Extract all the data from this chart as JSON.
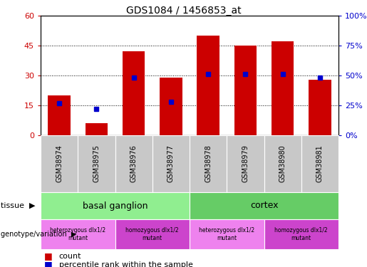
{
  "title": "GDS1084 / 1456853_at",
  "samples": [
    "GSM38974",
    "GSM38975",
    "GSM38976",
    "GSM38977",
    "GSM38978",
    "GSM38979",
    "GSM38980",
    "GSM38981"
  ],
  "counts": [
    20,
    6,
    42,
    29,
    50,
    45,
    47,
    28
  ],
  "percentiles": [
    27,
    22,
    48,
    28,
    51,
    51,
    51,
    48
  ],
  "ylim_left": [
    0,
    60
  ],
  "ylim_right": [
    0,
    100
  ],
  "yticks_left": [
    0,
    15,
    30,
    45,
    60
  ],
  "yticks_right": [
    0,
    25,
    50,
    75,
    100
  ],
  "ytick_labels_left": [
    "0",
    "15",
    "30",
    "45",
    "60"
  ],
  "ytick_labels_right": [
    "0%",
    "25%",
    "50%",
    "75%",
    "100%"
  ],
  "tissue_groups": [
    {
      "label": "basal ganglion",
      "start": 0,
      "end": 4,
      "color": "#90EE90"
    },
    {
      "label": "cortex",
      "start": 4,
      "end": 8,
      "color": "#66CC66"
    }
  ],
  "genotype_groups": [
    {
      "label": "heterozygous dlx1/2\nmutant",
      "start": 0,
      "end": 2,
      "color": "#EE82EE"
    },
    {
      "label": "homozygous dlx1/2\nmutant",
      "start": 2,
      "end": 4,
      "color": "#CC44CC"
    },
    {
      "label": "heterozygous dlx1/2\nmutant",
      "start": 4,
      "end": 6,
      "color": "#EE82EE"
    },
    {
      "label": "homozygous dlx1/2\nmutant",
      "start": 6,
      "end": 8,
      "color": "#CC44CC"
    }
  ],
  "bar_color": "#CC0000",
  "dot_color": "#0000CC",
  "label_tissue": "tissue",
  "label_genotype": "genotype/variation",
  "legend_count": "count",
  "legend_percentile": "percentile rank within the sample",
  "sample_bg_color": "#C8C8C8",
  "left_tick_color": "#CC0000",
  "right_tick_color": "#0000CC"
}
